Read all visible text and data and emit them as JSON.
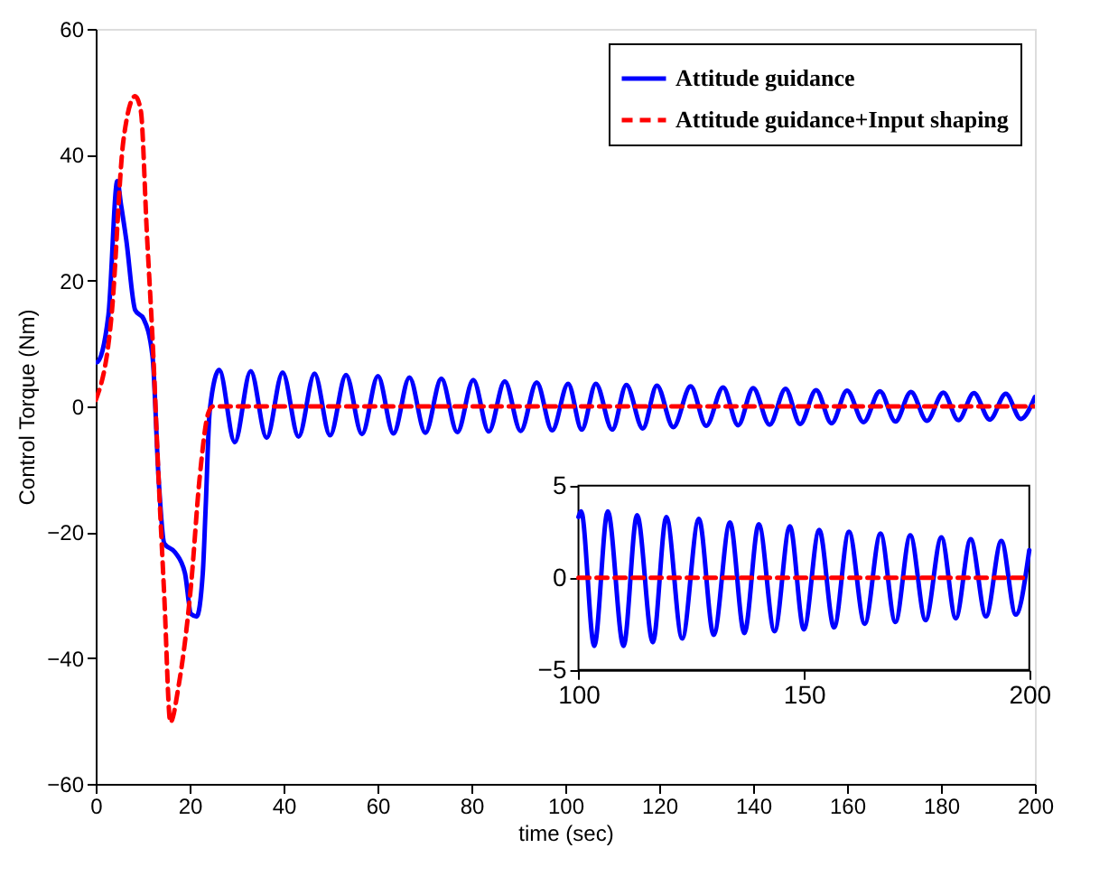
{
  "chart_data": [
    {
      "type": "line",
      "xlabel": "time (sec)",
      "ylabel": "Control Torque (Nm)",
      "xlim": [
        0,
        200
      ],
      "ylim": [
        -60,
        60
      ],
      "xticks": [
        0,
        20,
        40,
        60,
        80,
        100,
        120,
        140,
        160,
        180,
        200
      ],
      "yticks": [
        -60,
        -40,
        -20,
        0,
        20,
        40,
        60
      ],
      "grid": false,
      "legend": "top right",
      "series": [
        {
          "name": "Attitude guidance",
          "color": "#0000ff",
          "line_style": "solid",
          "x": [
            0,
            0.2,
            2.7,
            4.6,
            5.4,
            6.5,
            8.4,
            10.2,
            12.1,
            13.4,
            14.6,
            16.9,
            19,
            20.3,
            21.5,
            22.8,
            23.4,
            24.3,
            26.3,
            29.6,
            33.0,
            36.4,
            39.8,
            43.2,
            46.6,
            49.9,
            53.3,
            56.7,
            60.1,
            63.4,
            66.8,
            70.2,
            73.6,
            77,
            80.4,
            83.7,
            87.1,
            90.5,
            93.9,
            97.2,
            100.6,
            103.5,
            106.5,
            110,
            113,
            116.5,
            119.5,
            123,
            126.7,
            130,
            133.6,
            136.8,
            140,
            143.5,
            146.9,
            150,
            153.4,
            156.7,
            160,
            163.5,
            167,
            170.3,
            173.6,
            177,
            180.5,
            183.7,
            187,
            190.4,
            193.8,
            197,
            200
          ],
          "values": [
            7,
            7,
            14.5,
            35.8,
            32,
            26.5,
            15.3,
            13.9,
            7.9,
            -11.6,
            -21.8,
            -23.2,
            -26.5,
            -33,
            -33.4,
            -26.5,
            -16.3,
            -0.5,
            5.8,
            -5.7,
            5.6,
            -5.0,
            5.4,
            -4.8,
            5.2,
            -4.6,
            5.0,
            -4.4,
            4.8,
            -4.3,
            4.6,
            -4.2,
            4.4,
            -4.1,
            4.2,
            -4.0,
            4.0,
            -3.9,
            3.8,
            -3.8,
            3.6,
            -3.7,
            3.6,
            -3.7,
            3.4,
            -3.5,
            3.3,
            -3.3,
            3.2,
            -3.1,
            3.0,
            -3.0,
            2.9,
            -2.9,
            2.8,
            -2.8,
            2.6,
            -2.7,
            2.5,
            -2.5,
            2.4,
            -2.4,
            2.3,
            -2.3,
            2.2,
            -2.2,
            2.1,
            -2.1,
            2.0,
            -2.0,
            1.5
          ]
        },
        {
          "name": "Attitude guidance+Input shaping",
          "color": "#ff0000",
          "line_style": "dashed",
          "x": [
            0,
            3.4,
            5.9,
            8.4,
            9.6,
            10.9,
            12.1,
            13.4,
            14.6,
            15.9,
            17.7,
            20.3,
            22.1,
            24,
            25,
            200
          ],
          "values": [
            1,
            14.7,
            42.3,
            49.3,
            47,
            27.4,
            10.7,
            -11.6,
            -30.2,
            -50.2,
            -44.2,
            -28.4,
            -11.6,
            -1,
            0,
            0
          ]
        }
      ]
    },
    {
      "type": "line",
      "xlim": [
        100,
        200
      ],
      "ylim": [
        -5,
        5
      ],
      "xticks": [
        100,
        150,
        200
      ],
      "yticks": [
        -5,
        0,
        5
      ],
      "grid": false,
      "series": [
        {
          "color": "#0000ff",
          "line_style": "solid",
          "x": [
            100,
            100.6,
            103.5,
            106.5,
            110,
            113,
            116.5,
            119.5,
            123,
            126.7,
            130,
            133.6,
            136.8,
            140,
            143.5,
            146.9,
            150,
            153.4,
            156.7,
            160,
            163.5,
            167,
            170.3,
            173.6,
            177,
            180.5,
            183.7,
            187,
            190.4,
            193.8,
            197,
            200
          ],
          "values": [
            3.3,
            3.6,
            -3.7,
            3.6,
            -3.7,
            3.4,
            -3.5,
            3.3,
            -3.3,
            3.2,
            -3.1,
            3.0,
            -3.0,
            2.9,
            -2.9,
            2.8,
            -2.8,
            2.6,
            -2.7,
            2.5,
            -2.5,
            2.4,
            -2.4,
            2.3,
            -2.3,
            2.2,
            -2.2,
            2.1,
            -2.1,
            2.0,
            -2.0,
            1.5
          ]
        },
        {
          "color": "#ff0000",
          "line_style": "dashed",
          "x": [
            100,
            200
          ],
          "values": [
            0,
            0
          ]
        }
      ]
    }
  ]
}
